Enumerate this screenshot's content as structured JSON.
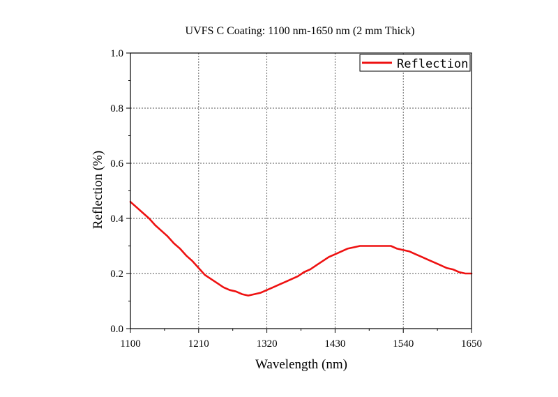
{
  "chart_data": {
    "type": "line",
    "title": "UVFS C Coating: 1100 nm-1650 nm (2 mm Thick)",
    "xlabel": "Wavelength (nm)",
    "ylabel": "Reflection (%)",
    "xlim": [
      1100,
      1650
    ],
    "ylim": [
      0,
      1.0
    ],
    "xticks": [
      1100,
      1210,
      1320,
      1430,
      1540,
      1650
    ],
    "xtick_labels": [
      "1100",
      "1210",
      "1320",
      "1430",
      "1540",
      "1650"
    ],
    "yticks": [
      0,
      0.2,
      0.4,
      0.6,
      0.8,
      1.0
    ],
    "ytick_labels": [
      "0.0",
      "0.2",
      "0.4",
      "0.6",
      "0.8",
      "1.0"
    ],
    "grid": true,
    "legend_position": "top-right",
    "series": [
      {
        "name": "Reflection",
        "color": "#ee1111",
        "x": [
          1100,
          1110,
          1120,
          1130,
          1140,
          1150,
          1160,
          1170,
          1180,
          1190,
          1200,
          1210,
          1220,
          1230,
          1240,
          1250,
          1260,
          1270,
          1280,
          1290,
          1300,
          1310,
          1320,
          1330,
          1340,
          1350,
          1360,
          1370,
          1380,
          1390,
          1400,
          1410,
          1420,
          1430,
          1440,
          1450,
          1460,
          1470,
          1480,
          1490,
          1500,
          1510,
          1520,
          1530,
          1540,
          1550,
          1560,
          1570,
          1580,
          1590,
          1600,
          1610,
          1620,
          1630,
          1640,
          1650
        ],
        "y": [
          0.46,
          0.44,
          0.42,
          0.4,
          0.375,
          0.355,
          0.335,
          0.31,
          0.29,
          0.265,
          0.245,
          0.22,
          0.195,
          0.18,
          0.165,
          0.15,
          0.14,
          0.135,
          0.125,
          0.12,
          0.125,
          0.13,
          0.14,
          0.15,
          0.16,
          0.17,
          0.18,
          0.19,
          0.205,
          0.215,
          0.23,
          0.245,
          0.26,
          0.27,
          0.28,
          0.29,
          0.295,
          0.3,
          0.3,
          0.3,
          0.3,
          0.3,
          0.3,
          0.29,
          0.285,
          0.28,
          0.27,
          0.26,
          0.25,
          0.24,
          0.23,
          0.22,
          0.215,
          0.205,
          0.2,
          0.2
        ]
      }
    ]
  }
}
